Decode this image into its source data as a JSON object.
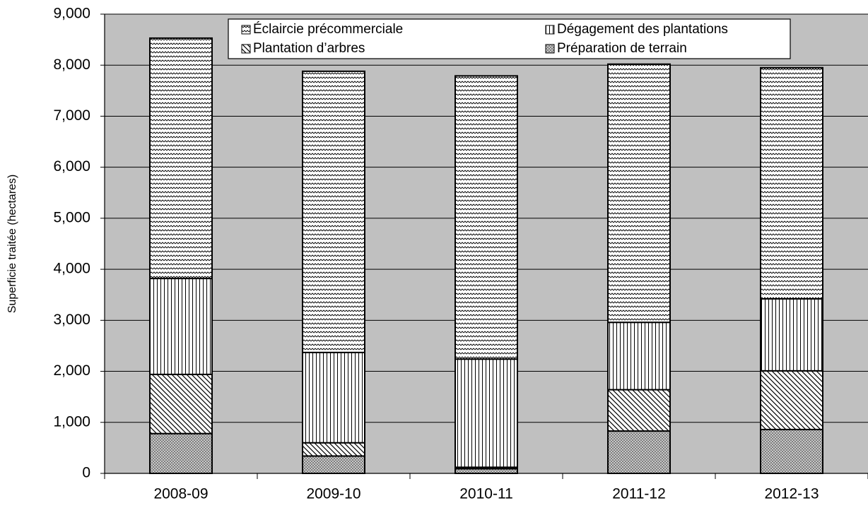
{
  "chart_data": {
    "type": "stacked_bar",
    "y_axis_label": "Superficie traitée (hectares)",
    "categories": [
      "2008-09",
      "2009-10",
      "2010-11",
      "2011-12",
      "2012-13"
    ],
    "series": [
      {
        "name": "Préparation de terrain",
        "color": "#7f7f7f",
        "values": [
          780,
          340,
          90,
          830,
          860
        ]
      },
      {
        "name": "Plantation d’arbres",
        "color": "#000000",
        "values": [
          1160,
          260,
          30,
          810,
          1150
        ]
      },
      {
        "name": "Dégagement des plantations",
        "color": "#000000",
        "values": [
          1880,
          1770,
          2120,
          1320,
          1410
        ]
      },
      {
        "name": "Éclaircie précommerciale",
        "color": "#000000",
        "values": [
          4710,
          5510,
          5550,
          5060,
          4530
        ]
      }
    ],
    "ylim": [
      0,
      9000
    ],
    "yticks": [
      0,
      {
        "value": 1000,
        "label": "1,000"
      },
      {
        "value": 2000,
        "label": "2,000"
      },
      {
        "value": 3000,
        "label": "3,000"
      },
      {
        "value": 4000,
        "label": "4,000"
      },
      {
        "value": 5000,
        "label": "5,000"
      },
      {
        "value": 6000,
        "label": "6,000"
      },
      {
        "value": 7000,
        "label": "7,000"
      },
      {
        "value": 8000,
        "label": "8,000"
      },
      {
        "value": 9000,
        "label": "9,000"
      }
    ],
    "grid": true
  }
}
